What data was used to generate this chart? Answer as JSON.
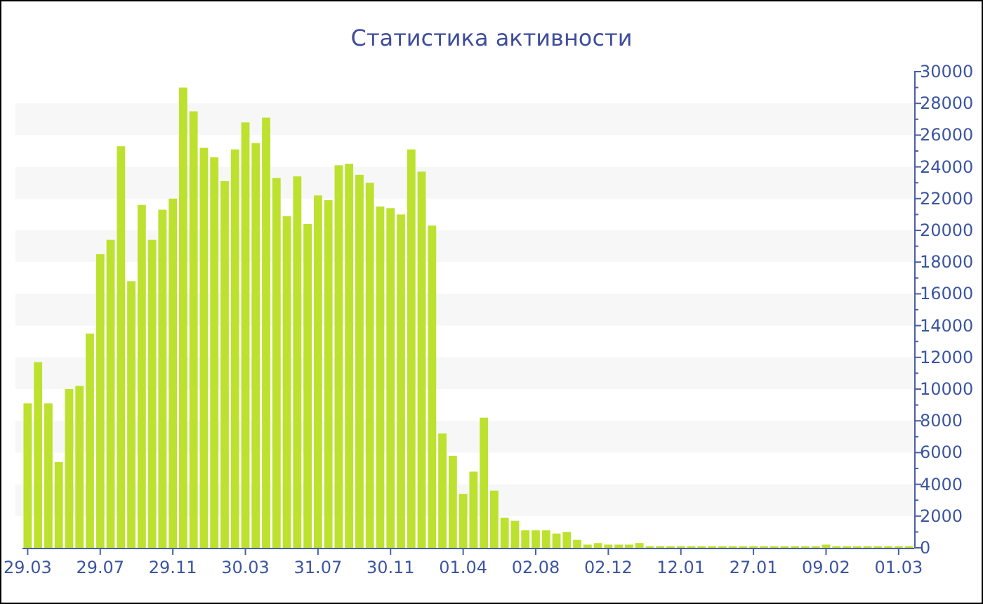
{
  "chart_data": {
    "type": "bar",
    "title": "Статистика активности",
    "categories": [
      "29.03",
      null,
      null,
      null,
      null,
      null,
      null,
      "29.07",
      null,
      null,
      null,
      null,
      null,
      null,
      "29.11",
      null,
      null,
      null,
      null,
      null,
      null,
      "30.03",
      null,
      null,
      null,
      null,
      null,
      null,
      "31.07",
      null,
      null,
      null,
      null,
      null,
      null,
      "30.11",
      null,
      null,
      null,
      null,
      null,
      null,
      "01.04",
      null,
      null,
      null,
      null,
      null,
      null,
      "02.08",
      null,
      null,
      null,
      null,
      null,
      null,
      "02.12",
      null,
      null,
      null,
      null,
      null,
      null,
      "12.01",
      null,
      null,
      null,
      null,
      null,
      null,
      "27.01",
      null,
      null,
      null,
      null,
      null,
      null,
      "09.02",
      null,
      null,
      null,
      null,
      null,
      null,
      "01.03",
      null
    ],
    "values": [
      9100,
      11700,
      9100,
      5400,
      10000,
      10200,
      13500,
      18500,
      19400,
      25300,
      16800,
      21600,
      19400,
      21300,
      22000,
      29000,
      27500,
      25200,
      24600,
      23100,
      25100,
      26800,
      25500,
      27100,
      23300,
      20900,
      23400,
      20400,
      22200,
      21900,
      24100,
      24200,
      23500,
      23000,
      21500,
      21400,
      21000,
      25100,
      23700,
      20300,
      7200,
      5800,
      3400,
      4800,
      8200,
      3600,
      1900,
      1700,
      1100,
      1100,
      1100,
      900,
      1000,
      500,
      200,
      300,
      200,
      200,
      200,
      300,
      100,
      100,
      100,
      100,
      100,
      100,
      100,
      100,
      100,
      100,
      100,
      100,
      100,
      100,
      100,
      100,
      100,
      200,
      100,
      100,
      100,
      100,
      100,
      100,
      100,
      100
    ],
    "color": "#bde12f",
    "ylim": [
      0,
      30000
    ],
    "yticks": [
      0,
      {
        "value": 1000,
        "label": null
      },
      2000,
      {
        "value": 3000,
        "label": null
      },
      4000,
      {
        "value": 5000,
        "label": null
      },
      6000,
      {
        "value": 7000,
        "label": null
      },
      8000,
      {
        "value": 9000,
        "label": null
      },
      10000,
      {
        "value": 11000,
        "label": null
      },
      12000,
      {
        "value": 13000,
        "label": null
      },
      14000,
      {
        "value": 15000,
        "label": null
      },
      16000,
      {
        "value": 17000,
        "label": null
      },
      18000,
      {
        "value": 19000,
        "label": null
      },
      20000,
      {
        "value": 21000,
        "label": null
      },
      22000,
      {
        "value": 23000,
        "label": null
      },
      24000,
      {
        "value": 25000,
        "label": null
      },
      26000,
      {
        "value": 27000,
        "label": null
      },
      28000,
      {
        "value": 29000,
        "label": null
      },
      30000
    ],
    "bands": [
      {
        "axis": "y",
        "from": 2000,
        "to": 4000,
        "color": "#f7f7f7"
      },
      {
        "axis": "y",
        "from": 6000,
        "to": 8000,
        "color": "#f7f7f7"
      },
      {
        "axis": "y",
        "from": 10000,
        "to": 12000,
        "color": "#f7f7f7"
      },
      {
        "axis": "y",
        "from": 14000,
        "to": 16000,
        "color": "#f7f7f7"
      },
      {
        "axis": "y",
        "from": 18000,
        "to": 20000,
        "color": "#f7f7f7"
      },
      {
        "axis": "y",
        "from": 22000,
        "to": 24000,
        "color": "#f7f7f7"
      },
      {
        "axis": "y",
        "from": 26000,
        "to": 28000,
        "color": "#f7f7f7"
      }
    ]
  }
}
